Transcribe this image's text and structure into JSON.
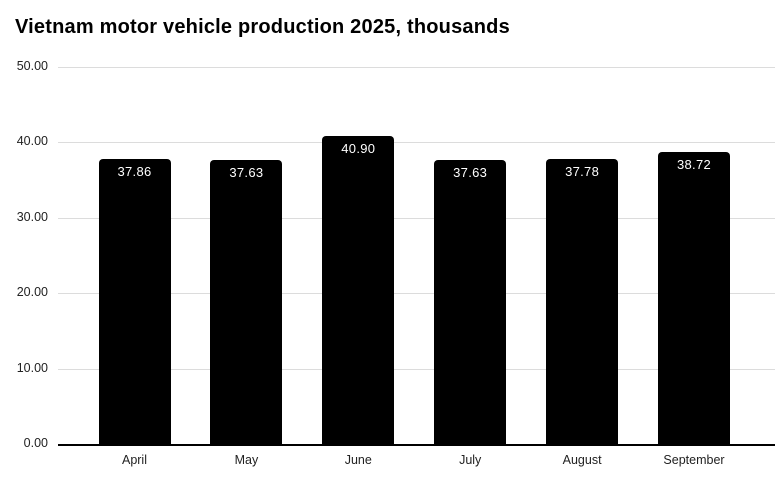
{
  "title": "Vietnam motor vehicle production 2025, thousands",
  "chart_data": {
    "type": "bar",
    "title": "Vietnam motor vehicle production 2025, thousands",
    "categories": [
      "April",
      "May",
      "June",
      "July",
      "August",
      "September"
    ],
    "values": [
      37.86,
      37.63,
      40.9,
      37.63,
      37.78,
      38.72
    ],
    "value_labels": [
      "37.86",
      "37.63",
      "40.90",
      "37.63",
      "37.78",
      "38.72"
    ],
    "xlabel": "",
    "ylabel": "",
    "ylim": [
      0,
      50
    ],
    "yticks": [
      0,
      10,
      20,
      30,
      40,
      50
    ],
    "ytick_labels": [
      "0.00",
      "10.00",
      "20.00",
      "30.00",
      "40.00",
      "50.00"
    ],
    "grid": true,
    "legend": "none",
    "colors": {
      "bar": "#000000",
      "bar_label_text": "#ffffff",
      "gridline": "#dcdcdc",
      "axis_line": "#000000",
      "tick_text": "#222222",
      "title_text": "#000000",
      "background": "#ffffff"
    }
  }
}
